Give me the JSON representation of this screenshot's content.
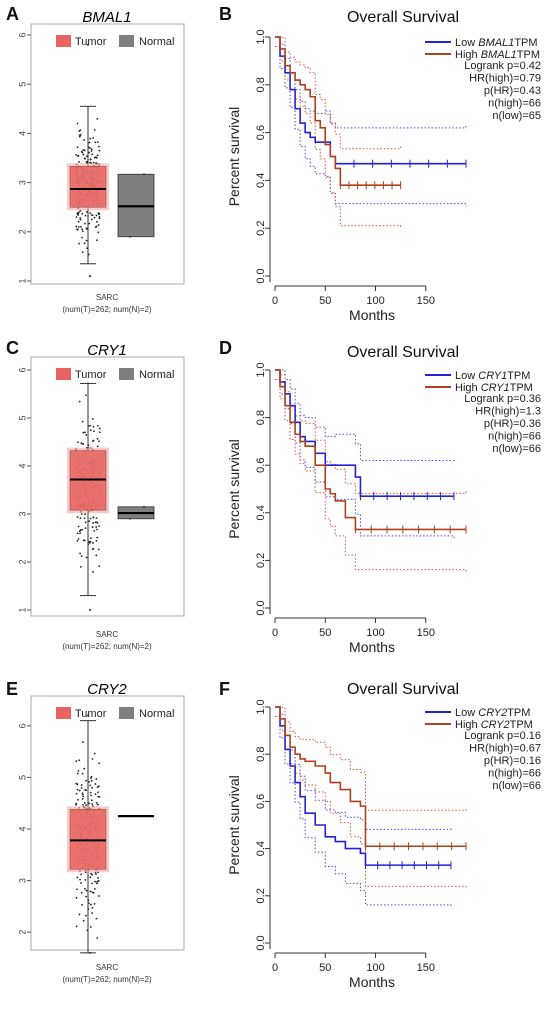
{
  "colors": {
    "tumor": "#e8635e",
    "tumor_light": "#f3a6a6",
    "normal": "#7f7f7f",
    "low": "#2323d6",
    "high": "#b0411f",
    "ci_low": "#4a4ae0",
    "ci_high": "#e0503a"
  },
  "chart_data": [
    {
      "panel": "A",
      "type": "box",
      "title": "BMAL1",
      "legend": [
        "Tumor",
        "Normal"
      ],
      "xlabel": "SARC",
      "sublabel": "(num(T)=262; num(N)=2)",
      "ylim": [
        1,
        6
      ],
      "yticks": [
        "1",
        "2",
        "3",
        "4",
        "5",
        "6"
      ],
      "tumor": {
        "q1": 2.5,
        "median": 2.87,
        "q3": 3.33,
        "whisker_low": 1.35,
        "whisker_high": 4.55,
        "max_point": 5.8,
        "min_point": 1.1
      },
      "normal": {
        "q1": 1.9,
        "median": 2.52,
        "q3": 3.17
      }
    },
    {
      "panel": "B",
      "type": "line",
      "title": "Overall Survival",
      "xlabel": "Months",
      "ylabel": "Percent survival",
      "xlim": [
        0,
        190
      ],
      "ylim": [
        0,
        1
      ],
      "xticks": [
        "0",
        "50",
        "100",
        "150"
      ],
      "yticks": [
        "0.0",
        "0.2",
        "0.4",
        "0.6",
        "0.8",
        "1.0"
      ],
      "legend": [
        {
          "prefix": "Low ",
          "gene": "BMAL1",
          "suffix": "TPM"
        },
        {
          "prefix": "High ",
          "gene": "BMAL1",
          "suffix": "TPM"
        }
      ],
      "stats": [
        "Logrank p=0.42",
        "HR(high)=0.79",
        "p(HR)=0.43",
        "n(high)=66",
        "n(low)=65"
      ],
      "series": [
        {
          "name": "Low BMAL1 TPM",
          "x": [
            0,
            5,
            10,
            15,
            20,
            25,
            30,
            35,
            40,
            50,
            55,
            60,
            190
          ],
          "y": [
            1.0,
            0.92,
            0.85,
            0.78,
            0.7,
            0.64,
            0.6,
            0.58,
            0.56,
            0.56,
            0.5,
            0.47,
            0.47
          ]
        },
        {
          "name": "High BMAL1 TPM",
          "x": [
            0,
            5,
            10,
            15,
            20,
            25,
            30,
            35,
            40,
            45,
            50,
            55,
            60,
            65,
            125
          ],
          "y": [
            1.0,
            0.95,
            0.88,
            0.85,
            0.82,
            0.8,
            0.78,
            0.75,
            0.65,
            0.62,
            0.55,
            0.5,
            0.45,
            0.38,
            0.38
          ]
        }
      ]
    },
    {
      "panel": "C",
      "type": "box",
      "title": "CRY1",
      "legend": [
        "Tumor",
        "Normal"
      ],
      "xlabel": "SARC",
      "sublabel": "(num(T)=262; num(N)=2)",
      "ylim": [
        1,
        6
      ],
      "yticks": [
        "1",
        "2",
        "3",
        "4",
        "5",
        "6"
      ],
      "tumor": {
        "q1": 3.08,
        "median": 3.72,
        "q3": 4.32,
        "whisker_low": 1.3,
        "whisker_high": 5.72,
        "max_point": 5.72,
        "min_point": 1.0
      },
      "normal": {
        "q1": 2.9,
        "median": 3.02,
        "q3": 3.15
      }
    },
    {
      "panel": "D",
      "type": "line",
      "title": "Overall Survival",
      "xlabel": "Months",
      "ylabel": "Percent survival",
      "xlim": [
        0,
        190
      ],
      "ylim": [
        0,
        1
      ],
      "xticks": [
        "0",
        "50",
        "100",
        "150"
      ],
      "yticks": [
        "0.0",
        "0.2",
        "0.4",
        "0.6",
        "0.8",
        "1.0"
      ],
      "legend": [
        {
          "prefix": "Low ",
          "gene": "CRY1",
          "suffix": "TPM"
        },
        {
          "prefix": "High ",
          "gene": "CRY1",
          "suffix": "TPM"
        }
      ],
      "stats": [
        "Logrank p=0.36",
        "HR(high)=1.3",
        "p(HR)=0.36",
        "n(high)=66",
        "n(low)=66"
      ],
      "series": [
        {
          "name": "Low CRY1 TPM",
          "x": [
            0,
            5,
            10,
            15,
            20,
            25,
            30,
            40,
            50,
            60,
            80,
            85,
            178
          ],
          "y": [
            1.0,
            0.95,
            0.9,
            0.85,
            0.78,
            0.72,
            0.7,
            0.65,
            0.6,
            0.6,
            0.55,
            0.47,
            0.47
          ]
        },
        {
          "name": "High CRY1 TPM",
          "x": [
            0,
            5,
            10,
            15,
            20,
            25,
            30,
            40,
            50,
            55,
            60,
            70,
            80,
            190
          ],
          "y": [
            1.0,
            0.93,
            0.85,
            0.78,
            0.73,
            0.7,
            0.68,
            0.6,
            0.5,
            0.48,
            0.45,
            0.38,
            0.33,
            0.33
          ]
        }
      ]
    },
    {
      "panel": "E",
      "type": "box",
      "title": "CRY2",
      "legend": [
        "Tumor",
        "Normal"
      ],
      "xlabel": "SARC",
      "sublabel": "(num(T)=262; num(N)=2)",
      "ylim": [
        1.5,
        6.5
      ],
      "yticks": [
        "2",
        "3",
        "4",
        "5",
        "6"
      ],
      "tumor": {
        "q1": 3.22,
        "median": 3.78,
        "q3": 4.38,
        "whisker_low": 1.6,
        "whisker_high": 6.1,
        "max_point": 6.2,
        "min_point": 1.6
      },
      "normal": {
        "q1": 4.25,
        "median": 4.25,
        "q3": 4.25
      }
    },
    {
      "panel": "F",
      "type": "line",
      "title": "Overall Survival",
      "xlabel": "Months",
      "ylabel": "Percent survival",
      "xlim": [
        0,
        190
      ],
      "ylim": [
        0,
        1
      ],
      "xticks": [
        "0",
        "50",
        "100",
        "150"
      ],
      "yticks": [
        "0.0",
        "0.2",
        "0.4",
        "0.6",
        "0.8",
        "1.0"
      ],
      "legend": [
        {
          "prefix": "Low ",
          "gene": "CRY2",
          "suffix": "TPM"
        },
        {
          "prefix": "High ",
          "gene": "CRY2",
          "suffix": "TPM"
        }
      ],
      "stats": [
        "Logrank p=0.16",
        "HR(high)=0.67",
        "p(HR)=0.16",
        "n(high)=66",
        "n(low)=66"
      ],
      "series": [
        {
          "name": "Low CRY2 TPM",
          "x": [
            0,
            5,
            10,
            15,
            20,
            25,
            30,
            40,
            50,
            60,
            70,
            85,
            90,
            175
          ],
          "y": [
            1.0,
            0.92,
            0.82,
            0.75,
            0.68,
            0.62,
            0.55,
            0.5,
            0.45,
            0.43,
            0.4,
            0.38,
            0.33,
            0.33
          ]
        },
        {
          "name": "High CRY2 TPM",
          "x": [
            0,
            5,
            10,
            15,
            20,
            25,
            30,
            40,
            50,
            55,
            65,
            75,
            85,
            90,
            190
          ],
          "y": [
            1.0,
            0.95,
            0.88,
            0.83,
            0.8,
            0.78,
            0.77,
            0.75,
            0.72,
            0.68,
            0.65,
            0.6,
            0.58,
            0.41,
            0.41
          ]
        }
      ]
    }
  ]
}
